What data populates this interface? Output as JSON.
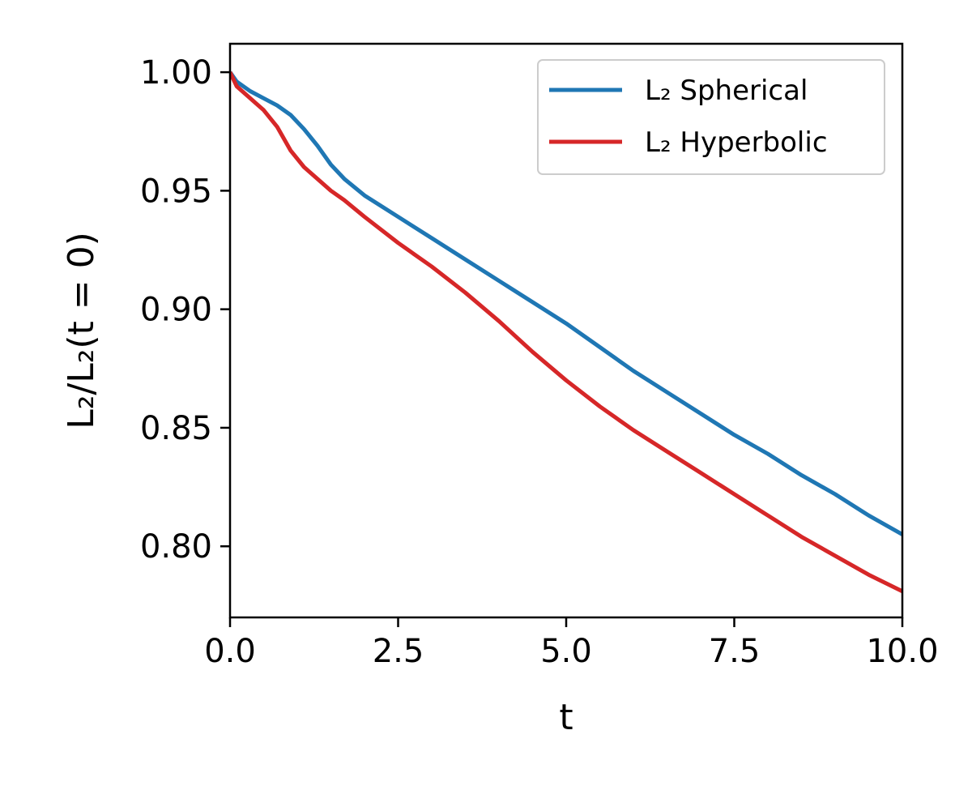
{
  "chart_data": {
    "type": "line",
    "xlabel": "t",
    "ylabel": "L₂/L₂(t = 0)",
    "xlim": [
      0,
      10
    ],
    "ylim": [
      0.77,
      1.012
    ],
    "xticks": [
      0,
      2.5,
      5,
      7.5,
      10
    ],
    "xtick_labels": [
      "0.0",
      "2.5",
      "5.0",
      "7.5",
      "10.0"
    ],
    "yticks": [
      0.8,
      0.85,
      0.9,
      0.95,
      1.0
    ],
    "ytick_labels": [
      "0.80",
      "0.85",
      "0.90",
      "0.95",
      "1.00"
    ],
    "grid": false,
    "legend_position": "top-right",
    "series": [
      {
        "name": "L₂ Spherical",
        "color": "#1f77b4",
        "x": [
          0,
          0.1,
          0.3,
          0.5,
          0.7,
          0.9,
          1.1,
          1.3,
          1.5,
          1.7,
          2.0,
          2.5,
          3.0,
          3.5,
          4.0,
          4.5,
          5.0,
          5.5,
          6.0,
          6.5,
          7.0,
          7.5,
          8.0,
          8.5,
          9.0,
          9.5,
          10.0
        ],
        "y": [
          1.0,
          0.996,
          0.992,
          0.989,
          0.986,
          0.982,
          0.976,
          0.969,
          0.961,
          0.955,
          0.948,
          0.939,
          0.93,
          0.921,
          0.912,
          0.903,
          0.894,
          0.884,
          0.874,
          0.865,
          0.856,
          0.847,
          0.839,
          0.83,
          0.822,
          0.813,
          0.805
        ]
      },
      {
        "name": "L₂ Hyperbolic",
        "color": "#d62728",
        "x": [
          0,
          0.1,
          0.3,
          0.5,
          0.7,
          0.9,
          1.1,
          1.3,
          1.5,
          1.7,
          2.0,
          2.5,
          3.0,
          3.5,
          4.0,
          4.5,
          5.0,
          5.5,
          6.0,
          6.5,
          7.0,
          7.5,
          8.0,
          8.5,
          9.0,
          9.5,
          10.0
        ],
        "y": [
          1.0,
          0.994,
          0.989,
          0.984,
          0.977,
          0.967,
          0.96,
          0.955,
          0.95,
          0.946,
          0.939,
          0.928,
          0.918,
          0.907,
          0.895,
          0.882,
          0.87,
          0.859,
          0.849,
          0.84,
          0.831,
          0.822,
          0.813,
          0.804,
          0.796,
          0.788,
          0.781
        ]
      }
    ]
  }
}
